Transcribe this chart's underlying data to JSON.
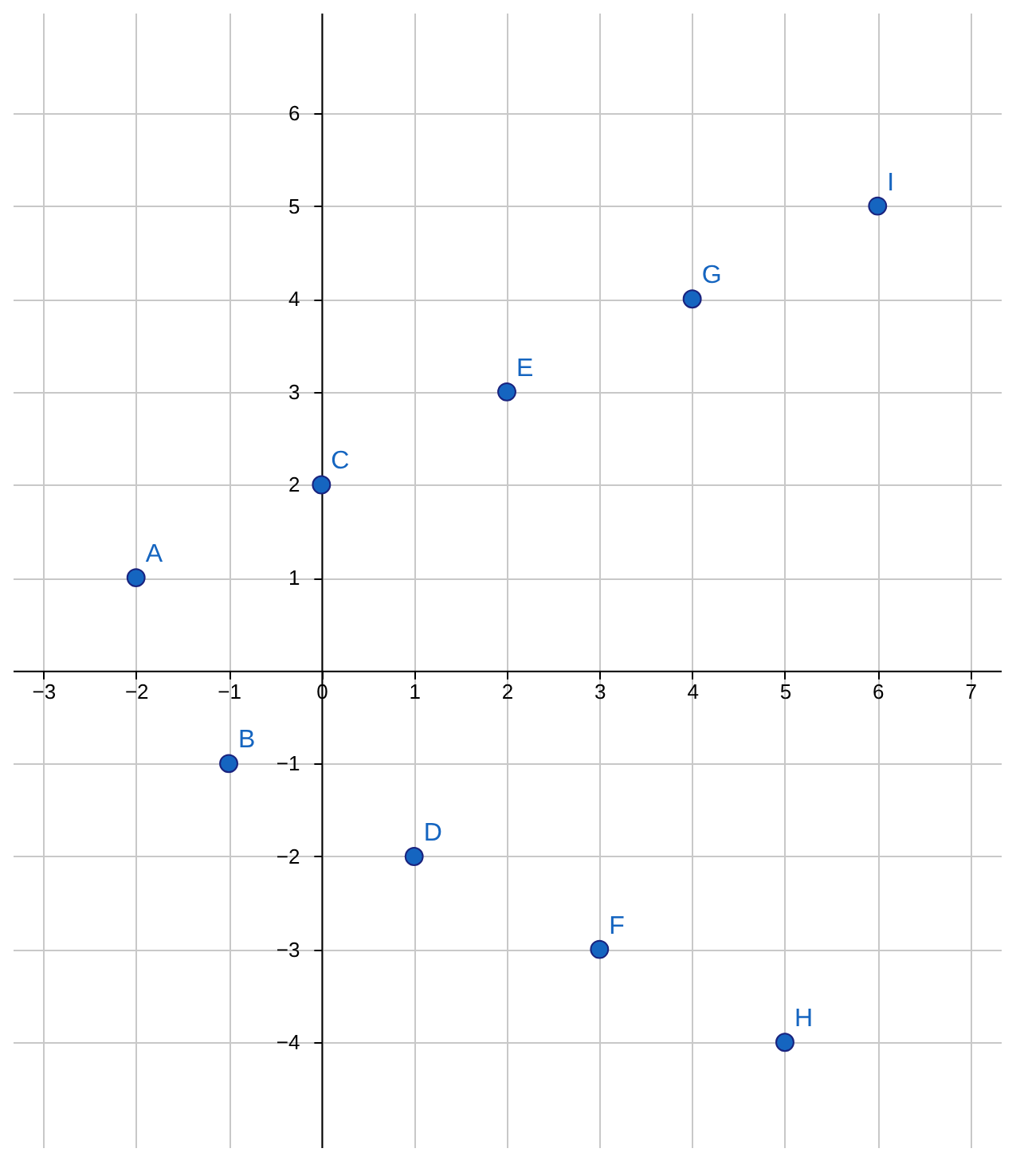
{
  "chart_data": {
    "type": "scatter",
    "x": [
      -2,
      -1,
      0,
      1,
      2,
      3,
      4,
      5,
      6
    ],
    "series": [
      {
        "color": "#1565c0",
        "values": [
          1,
          -1,
          2,
          -2,
          3,
          -3,
          4,
          -4,
          5
        ]
      }
    ],
    "xlim": [
      -3.33,
      7.33
    ],
    "ylim": [
      -5.13,
      7.08
    ],
    "xticks": [
      -3,
      -2,
      -1,
      0,
      1,
      2,
      3,
      4,
      5,
      6,
      7
    ],
    "yticks": [
      -4,
      -3,
      -2,
      -1,
      1,
      2,
      3,
      4,
      5,
      6
    ],
    "grid": true,
    "marker": "circle",
    "annotations": [
      {
        "text": "A",
        "x": -2,
        "y": 1
      },
      {
        "text": "B",
        "x": -1,
        "y": -1
      },
      {
        "text": "C",
        "x": 0,
        "y": 2
      },
      {
        "text": "D",
        "x": 1,
        "y": -2
      },
      {
        "text": "E",
        "x": 2,
        "y": 3
      },
      {
        "text": "F",
        "x": 3,
        "y": -3
      },
      {
        "text": "G",
        "x": 4,
        "y": 4
      },
      {
        "text": "H",
        "x": 5,
        "y": -4
      },
      {
        "text": "I",
        "x": 6,
        "y": 5
      }
    ]
  }
}
